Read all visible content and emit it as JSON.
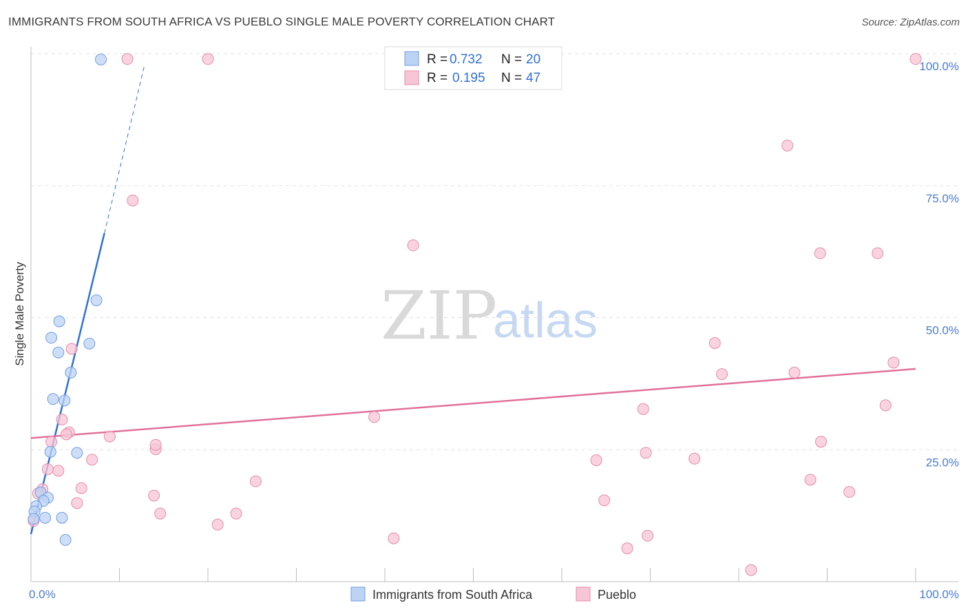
{
  "title": "IMMIGRANTS FROM SOUTH AFRICA VS PUEBLO SINGLE MALE POVERTY CORRELATION CHART",
  "source": "Source: ZipAtlas.com",
  "watermark": {
    "zip": "ZIP",
    "atlas": "atlas"
  },
  "legend": {
    "rows": [
      {
        "r_label": "R = ",
        "r_value": "0.732",
        "n_label": "N = ",
        "n_value": "20"
      },
      {
        "r_label": "R = ",
        "r_value": "0.195",
        "n_label": "N = ",
        "n_value": "47"
      }
    ]
  },
  "chart_data": {
    "type": "scatter",
    "title": "IMMIGRANTS FROM SOUTH AFRICA VS PUEBLO SINGLE MALE POVERTY CORRELATION CHART",
    "xlabel": "",
    "ylabel": "Single Male Poverty",
    "xlim": [
      0,
      100
    ],
    "ylim": [
      0,
      100
    ],
    "x_tick_labels": [
      "0.0%",
      "100.0%"
    ],
    "y_tick_labels": [
      "25.0%",
      "50.0%",
      "75.0%",
      "100.0%"
    ],
    "y_tick_values": [
      25,
      50,
      75,
      100
    ],
    "colors": {
      "blue": "#6f9ee3",
      "blue_fill": "#bcd3f3",
      "pink": "#e68aaa",
      "pink_fill": "#f7c6d6",
      "blue_line": "#2f6fd6",
      "pink_line": "#e0709a"
    },
    "series": [
      {
        "name": "Immigrants from South Africa",
        "color": "#6f9ee3",
        "points": [
          [
            7.9,
            98.9
          ],
          [
            3.2,
            49.3
          ],
          [
            7.4,
            53.3
          ],
          [
            2.3,
            46.2
          ],
          [
            6.6,
            45.1
          ],
          [
            3.1,
            43.4
          ],
          [
            4.5,
            39.6
          ],
          [
            2.5,
            34.6
          ],
          [
            3.8,
            34.3
          ],
          [
            2.2,
            24.6
          ],
          [
            5.2,
            24.4
          ],
          [
            1.1,
            16.9
          ],
          [
            1.9,
            15.9
          ],
          [
            1.4,
            15.3
          ],
          [
            0.6,
            14.3
          ],
          [
            0.4,
            13.3
          ],
          [
            1.6,
            12.1
          ],
          [
            3.5,
            12.1
          ],
          [
            0.3,
            11.9
          ],
          [
            3.9,
            7.9
          ]
        ],
        "trend": {
          "x0": 0,
          "y0": 9.0,
          "x1": 8.3,
          "y1": 66.0,
          "dash_x1": 12.8,
          "dash_y1": 97.6
        }
      },
      {
        "name": "Pueblo",
        "color": "#e68aaa",
        "points": [
          [
            10.9,
            99.0
          ],
          [
            20.0,
            99.0
          ],
          [
            100.0,
            99.0
          ],
          [
            85.5,
            82.6
          ],
          [
            11.5,
            72.2
          ],
          [
            43.2,
            63.7
          ],
          [
            89.2,
            62.2
          ],
          [
            95.7,
            62.2
          ],
          [
            4.6,
            44.1
          ],
          [
            77.3,
            45.2
          ],
          [
            97.5,
            41.5
          ],
          [
            78.1,
            39.3
          ],
          [
            86.3,
            39.6
          ],
          [
            3.5,
            30.7
          ],
          [
            96.6,
            33.4
          ],
          [
            69.2,
            32.7
          ],
          [
            38.8,
            31.2
          ],
          [
            4.3,
            28.3
          ],
          [
            4.0,
            27.9
          ],
          [
            8.9,
            27.5
          ],
          [
            2.3,
            26.5
          ],
          [
            14.1,
            25.1
          ],
          [
            14.1,
            25.9
          ],
          [
            69.5,
            24.4
          ],
          [
            6.9,
            23.1
          ],
          [
            63.9,
            23.0
          ],
          [
            75.0,
            23.3
          ],
          [
            89.3,
            26.5
          ],
          [
            1.9,
            21.3
          ],
          [
            3.1,
            21.0
          ],
          [
            25.4,
            19.0
          ],
          [
            88.1,
            19.3
          ],
          [
            5.7,
            17.7
          ],
          [
            1.3,
            17.5
          ],
          [
            0.8,
            16.7
          ],
          [
            92.5,
            17.0
          ],
          [
            13.9,
            16.3
          ],
          [
            64.8,
            15.4
          ],
          [
            5.2,
            14.9
          ],
          [
            14.6,
            12.9
          ],
          [
            23.2,
            12.9
          ],
          [
            21.1,
            10.8
          ],
          [
            41.0,
            8.2
          ],
          [
            69.7,
            8.7
          ],
          [
            67.4,
            6.3
          ],
          [
            81.4,
            2.2
          ],
          [
            0.3,
            11.5
          ]
        ],
        "trend": {
          "x0": 0,
          "y0": 27.2,
          "x1": 100.0,
          "y1": 40.3
        }
      }
    ]
  }
}
